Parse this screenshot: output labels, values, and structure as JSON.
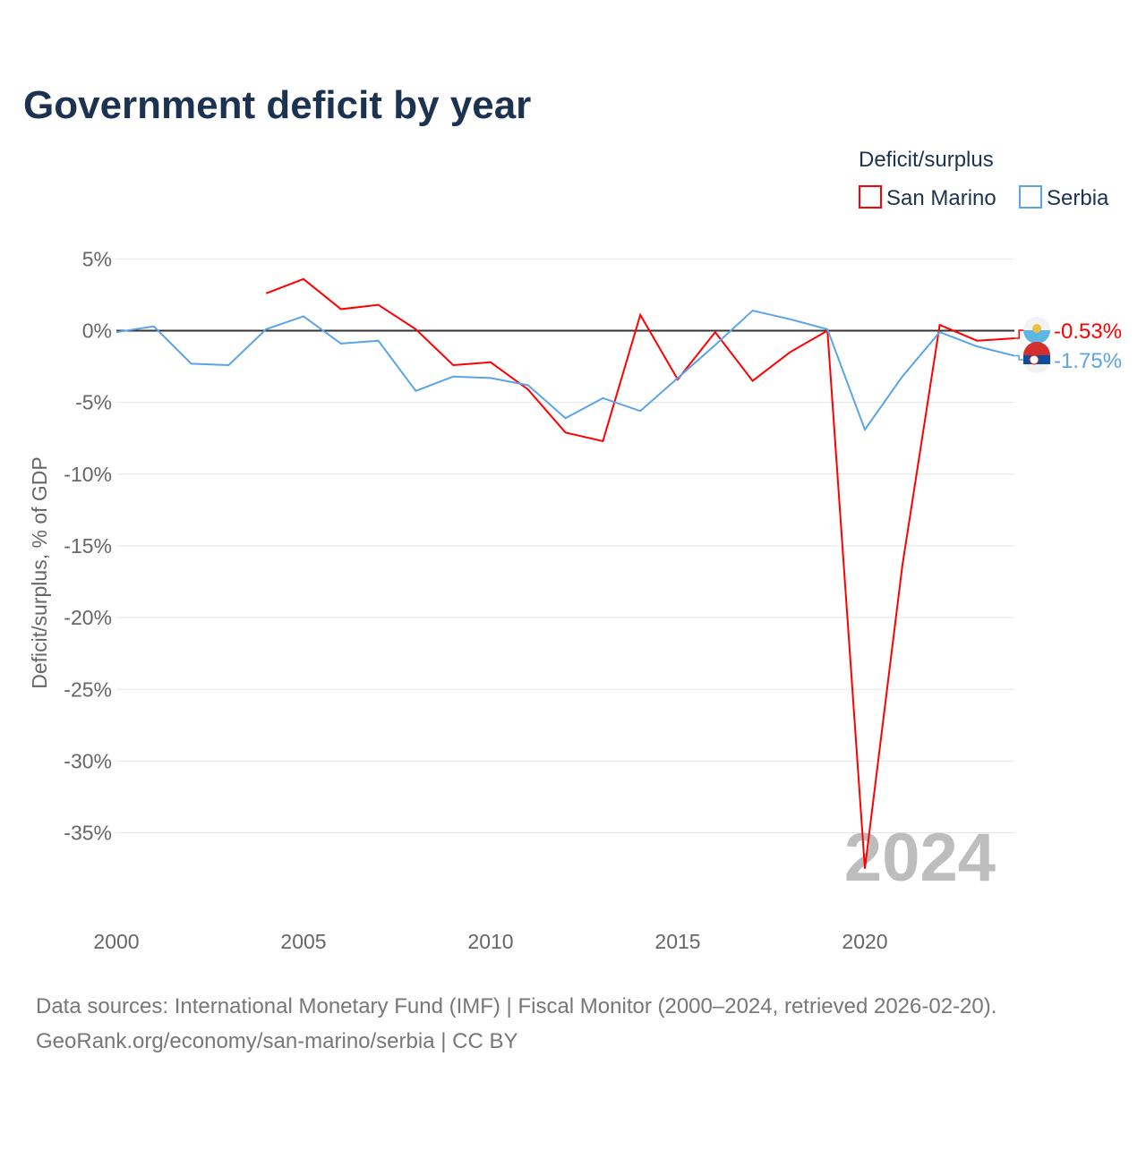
{
  "chart_data": {
    "type": "line",
    "title": "Government deficit by year",
    "ylabel": "Deficit/surplus, % of GDP",
    "xlabel": "",
    "legend_title": "Deficit/surplus",
    "legend_position": "top-right",
    "ylim": [
      -40,
      6
    ],
    "xlim": [
      2000,
      2024
    ],
    "yticks": [
      5,
      0,
      -5,
      -10,
      -15,
      -20,
      -25,
      -30,
      -35
    ],
    "ytick_labels": [
      "5%",
      "0%",
      "-5%",
      "-10%",
      "-15%",
      "-20%",
      "-25%",
      "-30%",
      "-35%"
    ],
    "xticks": [
      2000,
      2005,
      2010,
      2015,
      2020
    ],
    "xtick_labels": [
      "2000",
      "2005",
      "2010",
      "2015",
      "2020"
    ],
    "watermark_year": "2024",
    "series": [
      {
        "name": "San Marino",
        "color": "#ff0000",
        "end_label": "-0.53%",
        "x": [
          2004,
          2005,
          2006,
          2007,
          2008,
          2009,
          2010,
          2011,
          2012,
          2013,
          2014,
          2015,
          2016,
          2017,
          2018,
          2019,
          2020,
          2021,
          2022,
          2023,
          2024
        ],
        "values": [
          2.6,
          3.6,
          1.5,
          1.8,
          0.1,
          -2.4,
          -2.2,
          -4.1,
          -7.1,
          -7.7,
          1.1,
          -3.4,
          -0.1,
          -3.5,
          -1.5,
          0.0,
          -37.5,
          -16.4,
          0.4,
          -0.7,
          -0.53
        ]
      },
      {
        "name": "Serbia",
        "color": "#5ba4e8",
        "end_label": "-1.75%",
        "x": [
          2000,
          2001,
          2002,
          2003,
          2004,
          2005,
          2006,
          2007,
          2008,
          2009,
          2010,
          2011,
          2012,
          2013,
          2014,
          2015,
          2016,
          2017,
          2018,
          2019,
          2020,
          2021,
          2022,
          2023,
          2024
        ],
        "values": [
          -0.1,
          0.3,
          -2.3,
          -2.4,
          0.1,
          1.0,
          -0.9,
          -0.7,
          -4.2,
          -3.2,
          -3.3,
          -3.8,
          -6.1,
          -4.7,
          -5.6,
          -3.3,
          -1.0,
          1.4,
          0.8,
          0.1,
          -6.9,
          -3.2,
          -0.1,
          -1.1,
          -1.75
        ]
      }
    ]
  },
  "footer": {
    "sources": "Data sources: International Monetary Fund (IMF) | Fiscal Monitor (2000–2024, retrieved 2026-02-20).",
    "credit": "GeoRank.org/economy/san-marino/serbia | CC BY"
  }
}
